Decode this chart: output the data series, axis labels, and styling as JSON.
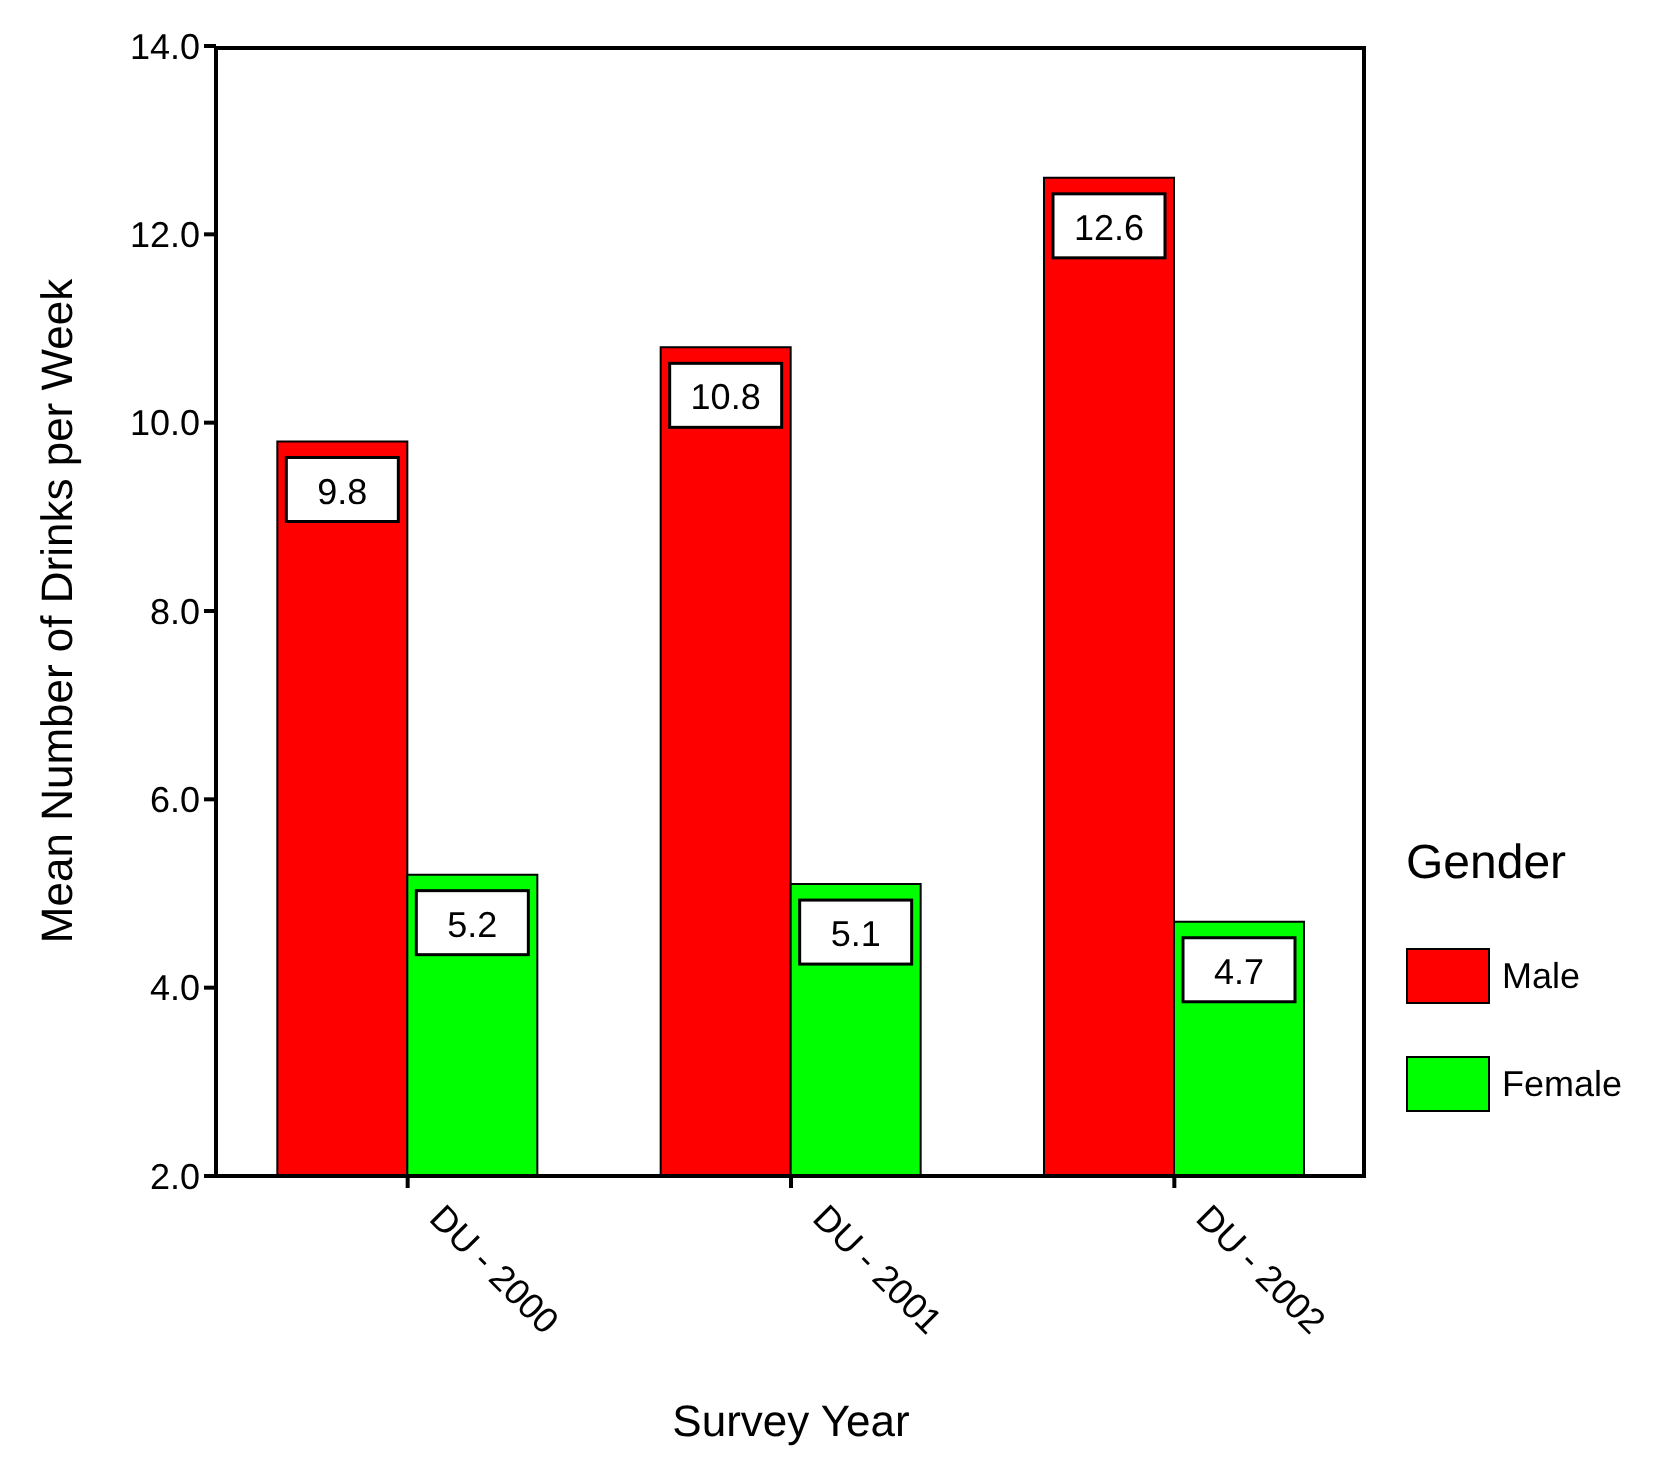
{
  "chart_data": {
    "type": "bar",
    "xlabel": "Survey Year",
    "ylabel": "Mean Number of Drinks per Week",
    "legend_title": "Gender",
    "categories": [
      "DU - 2000",
      "DU - 2001",
      "DU - 2002"
    ],
    "series": [
      {
        "name": "Male",
        "color": "#ff0000",
        "values": [
          9.8,
          10.8,
          12.6
        ]
      },
      {
        "name": "Female",
        "color": "#00ff00",
        "values": [
          5.2,
          5.1,
          4.7
        ]
      }
    ],
    "ylim": [
      2,
      14
    ],
    "yticks": [
      {
        "value": 2,
        "label": "2.0"
      },
      {
        "value": 4,
        "label": "4.0"
      },
      {
        "value": 6,
        "label": "6.0"
      },
      {
        "value": 8,
        "label": "8.0"
      },
      {
        "value": 10,
        "label": "10.0"
      },
      {
        "value": 12,
        "label": "12.0"
      },
      {
        "value": 14,
        "label": "14.0"
      }
    ],
    "data_labels": true,
    "legend": "right",
    "grid": false
  }
}
